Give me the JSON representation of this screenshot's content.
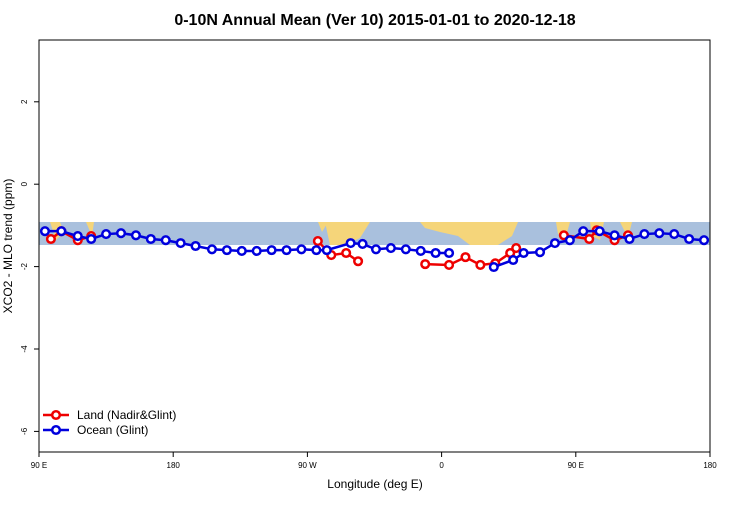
{
  "chart_data": {
    "type": "line",
    "title": "0-10N Annual Mean (Ver 10)   2015-01-01 to 2020-12-18",
    "x_label": "Longitude (deg E)",
    "y_label": "XCO2 - MLO trend (ppm)",
    "xlim": [
      90,
      540
    ],
    "ylim": [
      -6.5,
      3.5
    ],
    "xticks": [
      {
        "value": 90,
        "label": "90 E"
      },
      {
        "value": 180,
        "label": "180"
      },
      {
        "value": 270,
        "label": "90 W"
      },
      {
        "value": 360,
        "label": "0"
      },
      {
        "value": 450,
        "label": "90 E"
      },
      {
        "value": 540,
        "label": "180"
      }
    ],
    "yticks": [
      -6,
      -4,
      -2,
      0,
      2
    ],
    "legend_position": "bottom-left",
    "series": [
      {
        "name": "Land (Nadir&Glint)",
        "color": "#ee0000",
        "x": [
          98,
          105,
          116,
          125,
          null,
          277,
          286,
          296,
          304,
          null,
          349,
          365,
          376,
          386,
          396,
          406,
          410,
          null,
          442,
          459,
          464,
          476,
          485
        ],
        "values": [
          -1.33,
          -1.14,
          -1.36,
          -1.26,
          null,
          -1.38,
          -1.72,
          -1.67,
          -1.87,
          null,
          -1.94,
          -1.96,
          -1.77,
          -1.96,
          -1.92,
          -1.67,
          -1.55,
          null,
          -1.24,
          -1.33,
          -1.12,
          -1.36,
          -1.24
        ]
      },
      {
        "name": "Ocean (Glint)",
        "color": "#0000dd",
        "x": [
          94,
          105,
          116,
          125,
          135,
          145,
          155,
          165,
          175,
          185,
          195,
          206,
          216,
          226,
          236,
          246,
          256,
          266,
          276,
          283,
          299,
          307,
          316,
          326,
          336,
          346,
          356,
          365,
          null,
          395,
          408,
          415,
          426,
          436,
          446,
          455,
          466,
          476,
          486,
          496,
          506,
          516,
          526,
          536
        ],
        "values": [
          -1.14,
          -1.14,
          -1.26,
          -1.33,
          -1.21,
          -1.19,
          -1.24,
          -1.33,
          -1.36,
          -1.43,
          -1.5,
          -1.58,
          -1.6,
          -1.62,
          -1.62,
          -1.6,
          -1.6,
          -1.58,
          -1.6,
          -1.6,
          -1.43,
          -1.45,
          -1.58,
          -1.55,
          -1.58,
          -1.62,
          -1.67,
          -1.67,
          null,
          -2.01,
          -1.84,
          -1.67,
          -1.65,
          -1.43,
          -1.36,
          -1.14,
          -1.14,
          -1.24,
          -1.33,
          -1.21,
          -1.19,
          -1.21,
          -1.33,
          -1.36
        ]
      }
    ]
  }
}
